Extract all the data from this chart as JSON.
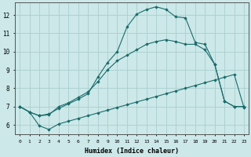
{
  "xlabel": "Humidex (Indice chaleur)",
  "bg_color": "#cce8e8",
  "grid_color": "#aacece",
  "line_color": "#1a6b6b",
  "xlim_min": -0.5,
  "xlim_max": 23.5,
  "ylim_min": 5.5,
  "ylim_max": 12.7,
  "yticks": [
    6,
    7,
    8,
    9,
    10,
    11,
    12
  ],
  "xticks": [
    0,
    1,
    2,
    3,
    4,
    5,
    6,
    7,
    8,
    9,
    10,
    11,
    12,
    13,
    14,
    15,
    16,
    17,
    18,
    19,
    20,
    21,
    22,
    23
  ],
  "line1_x": [
    0,
    1,
    2,
    3,
    4,
    5,
    6,
    7,
    8,
    9,
    10,
    11,
    12,
    13,
    14,
    15,
    16,
    17,
    18,
    19,
    20,
    21,
    22,
    23
  ],
  "line1_y": [
    7.0,
    6.7,
    5.95,
    5.75,
    6.05,
    6.2,
    6.35,
    6.5,
    6.65,
    6.8,
    6.95,
    7.1,
    7.25,
    7.4,
    7.55,
    7.7,
    7.85,
    8.0,
    8.15,
    8.3,
    8.45,
    8.6,
    8.75,
    6.95
  ],
  "line2_x": [
    0,
    1,
    2,
    3,
    4,
    5,
    6,
    7,
    8,
    9,
    10,
    11,
    12,
    13,
    14,
    15,
    16,
    17,
    18,
    19,
    20,
    21,
    22,
    23
  ],
  "line2_y": [
    7.0,
    6.7,
    6.5,
    6.6,
    6.9,
    7.15,
    7.4,
    7.7,
    8.6,
    9.4,
    10.0,
    11.35,
    12.05,
    12.3,
    12.45,
    12.3,
    11.9,
    11.85,
    10.5,
    10.4,
    9.3,
    7.3,
    7.0,
    7.0
  ],
  "line3_x": [
    0,
    1,
    2,
    3,
    4,
    5,
    6,
    7,
    8,
    9,
    10,
    11,
    12,
    13,
    14,
    15,
    16,
    17,
    18,
    19,
    20,
    21,
    22,
    23
  ],
  "line3_y": [
    7.0,
    6.7,
    6.5,
    6.55,
    7.0,
    7.2,
    7.5,
    7.8,
    8.35,
    9.0,
    9.5,
    9.8,
    10.1,
    10.4,
    10.55,
    10.65,
    10.55,
    10.4,
    10.4,
    10.1,
    9.3,
    7.3,
    7.0,
    7.0
  ]
}
